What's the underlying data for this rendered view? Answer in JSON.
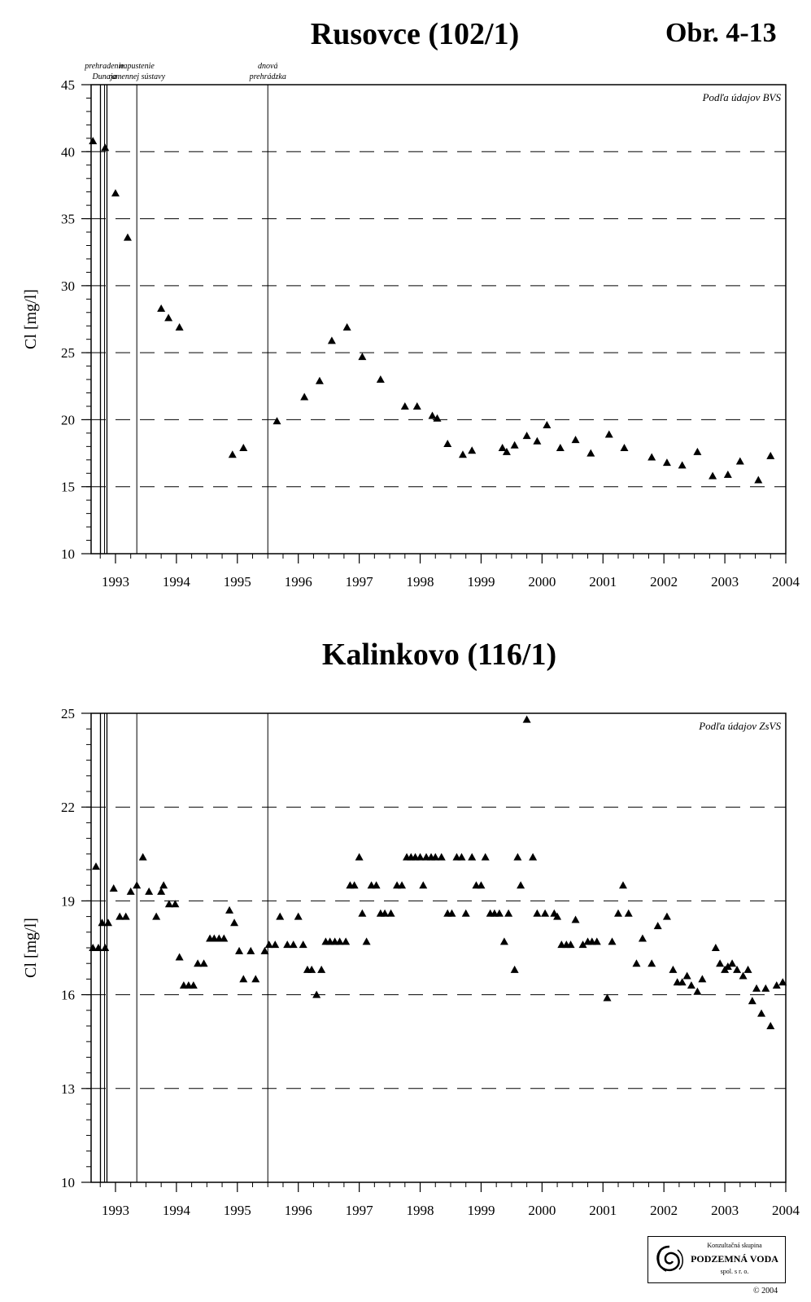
{
  "page": {
    "figure_label": "Obr. 4-13"
  },
  "events": [
    {
      "line1": "prehradenie",
      "line2": "Dunaja",
      "date": 1992.82
    },
    {
      "line1": "napustenie",
      "line2": "ramennej sústavy",
      "date": 1993.35
    },
    {
      "line1": "dnová",
      "line2": "prehrádzka",
      "date": 1995.5
    }
  ],
  "chart_data": [
    {
      "type": "scatter",
      "title": "Rusovce (102/1)",
      "ylabel": "Cl [mg/l]",
      "xlabel": "",
      "source_note": "Podľa údajov BVS",
      "xlim": [
        1992.6,
        2004.0
      ],
      "ylim": [
        10,
        45
      ],
      "yticks": [
        10,
        15,
        20,
        25,
        30,
        35,
        40,
        45
      ],
      "y_minor_step": 1,
      "xticks": [
        "1993",
        "1994",
        "1995",
        "1996",
        "1997",
        "1998",
        "1999",
        "2000",
        "2001",
        "2002",
        "2003",
        "2004"
      ],
      "gridlines_dashed": [
        15,
        20,
        25,
        30,
        35,
        40
      ],
      "marker": "triangle",
      "x": [
        1992.63,
        1992.83,
        1993.0,
        1993.2,
        1993.75,
        1993.87,
        1994.05,
        1994.92,
        1995.1,
        1995.65,
        1996.1,
        1996.35,
        1996.55,
        1996.8,
        1997.05,
        1997.35,
        1997.75,
        1997.95,
        1998.2,
        1998.28,
        1998.45,
        1998.7,
        1998.85,
        1999.35,
        1999.42,
        1999.55,
        1999.75,
        1999.92,
        2000.08,
        2000.3,
        2000.55,
        2000.8,
        2001.1,
        2001.35,
        2001.8,
        2002.05,
        2002.3,
        2002.55,
        2002.8,
        2003.05,
        2003.25,
        2003.55,
        2003.75
      ],
      "y": [
        40.8,
        40.3,
        36.9,
        33.6,
        28.3,
        27.6,
        26.9,
        17.4,
        17.9,
        19.9,
        21.7,
        22.9,
        25.9,
        26.9,
        24.7,
        23.0,
        21.0,
        21.0,
        20.3,
        20.1,
        18.2,
        17.4,
        17.7,
        17.9,
        17.6,
        18.1,
        18.8,
        18.4,
        19.6,
        17.9,
        18.5,
        17.5,
        18.9,
        17.9,
        17.2,
        16.8,
        16.6,
        17.6,
        15.8,
        15.9,
        16.9,
        15.5,
        17.3
      ]
    },
    {
      "type": "scatter",
      "title": "Kalinkovo (116/1)",
      "ylabel": "Cl [mg/l]",
      "xlabel": "",
      "source_note": "Podľa údajov ZsVS",
      "xlim": [
        1992.6,
        2004.0
      ],
      "ylim": [
        10,
        25
      ],
      "yticks": [
        10,
        13,
        16,
        19,
        22,
        25
      ],
      "y_minor_step": 0.5,
      "xticks": [
        "1993",
        "1994",
        "1995",
        "1996",
        "1997",
        "1998",
        "1999",
        "2000",
        "2001",
        "2002",
        "2003",
        "2004"
      ],
      "gridlines_dashed": [
        13,
        16,
        19,
        22
      ],
      "marker": "triangle",
      "x": [
        1992.63,
        1992.68,
        1992.72,
        1992.78,
        1992.83,
        1992.88,
        1992.97,
        1993.07,
        1993.17,
        1993.25,
        1993.35,
        1993.45,
        1993.55,
        1993.67,
        1993.75,
        1993.79,
        1993.88,
        1993.98,
        1994.05,
        1994.12,
        1994.2,
        1994.28,
        1994.35,
        1994.45,
        1994.55,
        1994.62,
        1994.7,
        1994.78,
        1994.87,
        1994.95,
        1995.03,
        1995.1,
        1995.22,
        1995.3,
        1995.45,
        1995.52,
        1995.62,
        1995.7,
        1995.82,
        1995.92,
        1996.0,
        1996.08,
        1996.15,
        1996.22,
        1996.3,
        1996.38,
        1996.45,
        1996.52,
        1996.6,
        1996.68,
        1996.78,
        1996.85,
        1996.92,
        1997.0,
        1997.05,
        1997.12,
        1997.2,
        1997.28,
        1997.35,
        1997.42,
        1997.52,
        1997.62,
        1997.7,
        1997.78,
        1997.85,
        1997.92,
        1998.0,
        1998.05,
        1998.1,
        1998.18,
        1998.25,
        1998.35,
        1998.45,
        1998.52,
        1998.6,
        1998.68,
        1998.75,
        1998.85,
        1998.92,
        1999.0,
        1999.07,
        1999.15,
        1999.22,
        1999.3,
        1999.38,
        1999.45,
        1999.55,
        1999.6,
        1999.65,
        1999.75,
        1999.85,
        1999.92,
        2000.05,
        2000.2,
        2000.25,
        2000.32,
        2000.4,
        2000.47,
        2000.55,
        2000.67,
        2000.75,
        2000.82,
        2000.9,
        2001.07,
        2001.15,
        2001.25,
        2001.33,
        2001.42,
        2001.55,
        2001.65,
        2001.8,
        2001.9,
        2002.05,
        2002.15,
        2002.22,
        2002.3,
        2002.38,
        2002.45,
        2002.55,
        2002.63,
        2002.85,
        2002.92,
        2003.0,
        2003.05,
        2003.12,
        2003.2,
        2003.3,
        2003.38,
        2003.45,
        2003.52,
        2003.6,
        2003.67,
        2003.75,
        2003.85,
        2003.95
      ],
      "y": [
        17.5,
        20.1,
        17.5,
        18.3,
        17.5,
        18.3,
        19.4,
        18.5,
        18.5,
        19.3,
        19.5,
        20.4,
        19.3,
        18.5,
        19.3,
        19.5,
        18.9,
        18.9,
        17.2,
        16.3,
        16.3,
        16.3,
        17.0,
        17.0,
        17.8,
        17.8,
        17.8,
        17.8,
        18.7,
        18.3,
        17.4,
        16.5,
        17.4,
        16.5,
        17.4,
        17.6,
        17.6,
        18.5,
        17.6,
        17.6,
        18.5,
        17.6,
        16.8,
        16.8,
        16.0,
        16.8,
        17.7,
        17.7,
        17.7,
        17.7,
        17.7,
        19.5,
        19.5,
        20.4,
        18.6,
        17.7,
        19.5,
        19.5,
        18.6,
        18.6,
        18.6,
        19.5,
        19.5,
        20.4,
        20.4,
        20.4,
        20.4,
        19.5,
        20.4,
        20.4,
        20.4,
        20.4,
        18.6,
        18.6,
        20.4,
        20.4,
        18.6,
        20.4,
        19.5,
        19.5,
        20.4,
        18.6,
        18.6,
        18.6,
        17.7,
        18.6,
        16.8,
        20.4,
        19.5,
        24.8,
        20.4,
        18.6,
        18.6,
        18.6,
        18.5,
        17.6,
        17.6,
        17.6,
        18.4,
        17.6,
        17.7,
        17.7,
        17.7,
        15.9,
        17.7,
        18.6,
        19.5,
        18.6,
        17.0,
        17.8,
        17.0,
        18.2,
        18.5,
        16.8,
        16.4,
        16.4,
        16.6,
        16.3,
        16.1,
        16.5,
        17.5,
        17.0,
        16.8,
        16.9,
        17.0,
        16.8,
        16.6,
        16.8,
        15.8,
        16.2,
        15.4,
        16.2,
        15.0,
        16.3,
        16.4
      ]
    }
  ],
  "logo": {
    "line1": "Konzultačná skupina",
    "line2": "PODZEMNÁ VODA",
    "line3": "spol. s r. o.",
    "copyright": "© 2004"
  }
}
